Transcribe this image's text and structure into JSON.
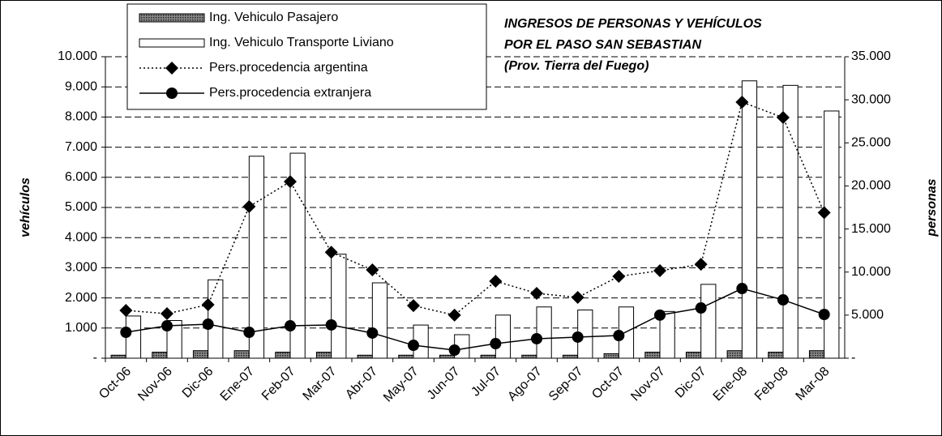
{
  "chart_data": {
    "type": "combo",
    "title": [
      "INGRESOS DE PERSONAS Y VEHÍCULOS",
      "POR EL PASO SAN SEBASTIAN",
      "(Prov. Tierra del Fuego)"
    ],
    "ylabel": "vehículos",
    "y2label": "personas",
    "categories": [
      "Oct-06",
      "Nov-06",
      "Dic-06",
      "Ene-07",
      "Feb-07",
      "Mar-07",
      "Abr-07",
      "May-07",
      "Jun-07",
      "Jul-07",
      "Ago-07",
      "Sep-07",
      "Oct-07",
      "Nov-07",
      "Dic-07",
      "Ene-08",
      "Feb-08",
      "Mar-08"
    ],
    "ylim": [
      0,
      10000
    ],
    "yticks": [
      {
        "value": 0,
        "label": "-"
      },
      {
        "value": 1000,
        "label": "1.000"
      },
      {
        "value": 2000,
        "label": "2.000"
      },
      {
        "value": 3000,
        "label": "3.000"
      },
      {
        "value": 4000,
        "label": "4.000"
      },
      {
        "value": 5000,
        "label": "5.000"
      },
      {
        "value": 6000,
        "label": "6.000"
      },
      {
        "value": 7000,
        "label": "7.000"
      },
      {
        "value": 8000,
        "label": "8.000"
      },
      {
        "value": 9000,
        "label": "9.000"
      },
      {
        "value": 10000,
        "label": "10.000"
      }
    ],
    "y2lim": [
      0,
      35000
    ],
    "y2ticks": [
      {
        "value": 0,
        "label": "-"
      },
      {
        "value": 5000,
        "label": "5.000"
      },
      {
        "value": 10000,
        "label": "10.000"
      },
      {
        "value": 15000,
        "label": "15.000"
      },
      {
        "value": 20000,
        "label": "20.000"
      },
      {
        "value": 25000,
        "label": "25.000"
      },
      {
        "value": 30000,
        "label": "30.000"
      },
      {
        "value": 35000,
        "label": "35.000"
      }
    ],
    "grid": true,
    "series": [
      {
        "name": "Ing. Vehiculo Pasajero",
        "type": "bar",
        "color": "#555555",
        "values": [
          100,
          200,
          250,
          250,
          200,
          200,
          100,
          100,
          100,
          100,
          100,
          100,
          150,
          200,
          200,
          250,
          200,
          250
        ]
      },
      {
        "name": "Ing. Vehiculo Transporte Liviano",
        "type": "bar",
        "color": "#ffffff",
        "values": [
          1400,
          1250,
          2600,
          6700,
          6800,
          3450,
          2500,
          1100,
          780,
          1430,
          1700,
          1600,
          1700,
          1550,
          2450,
          9200,
          9050,
          8200
        ]
      },
      {
        "name": "Pers.procedencia argentina",
        "type": "line",
        "axis": "y2",
        "color": "#000000",
        "linestyle": "dotted",
        "marker": "diamond",
        "values": [
          5550,
          5170,
          6210,
          17600,
          20500,
          12300,
          10250,
          6100,
          5000,
          8940,
          7530,
          7060,
          9500,
          10160,
          10900,
          29730,
          27940,
          16900
        ]
      },
      {
        "name": "Pers.procedencia extranjera",
        "type": "line",
        "axis": "y2",
        "color": "#000000",
        "linestyle": "solid",
        "marker": "circle",
        "values": [
          3010,
          3760,
          3950,
          3010,
          3760,
          3860,
          2920,
          1500,
          940,
          1690,
          2260,
          2450,
          2630,
          5000,
          5830,
          8090,
          6770,
          5080
        ]
      }
    ]
  }
}
